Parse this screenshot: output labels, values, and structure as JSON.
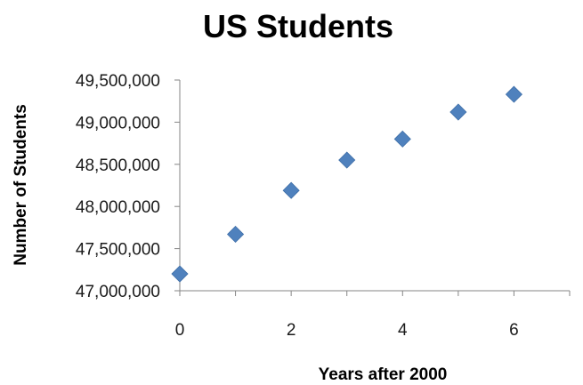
{
  "chart_data": {
    "type": "scatter",
    "title": "US Students",
    "xlabel": "Years after 2000",
    "ylabel": "Number of Students",
    "xlim": [
      0,
      7
    ],
    "ylim": [
      47000000,
      49500000
    ],
    "x_ticks": [
      0,
      2,
      4,
      6
    ],
    "x_tick_labels": [
      "0",
      "2",
      "4",
      "6"
    ],
    "y_ticks": [
      47000000,
      47500000,
      48000000,
      48500000,
      49000000,
      49500000
    ],
    "y_tick_labels": [
      "47,000,000",
      "47,500,000",
      "48,000,000",
      "48,500,000",
      "49,000,000",
      "49,500,000"
    ],
    "grid": false,
    "legend": "none",
    "marker": "diamond",
    "marker_color": "#4f81bd",
    "series": [
      {
        "x": [
          0,
          1,
          2,
          3,
          4,
          5,
          6
        ],
        "y": [
          47200000,
          47670000,
          48190000,
          48550000,
          48800000,
          49120000,
          49330000
        ]
      }
    ]
  }
}
